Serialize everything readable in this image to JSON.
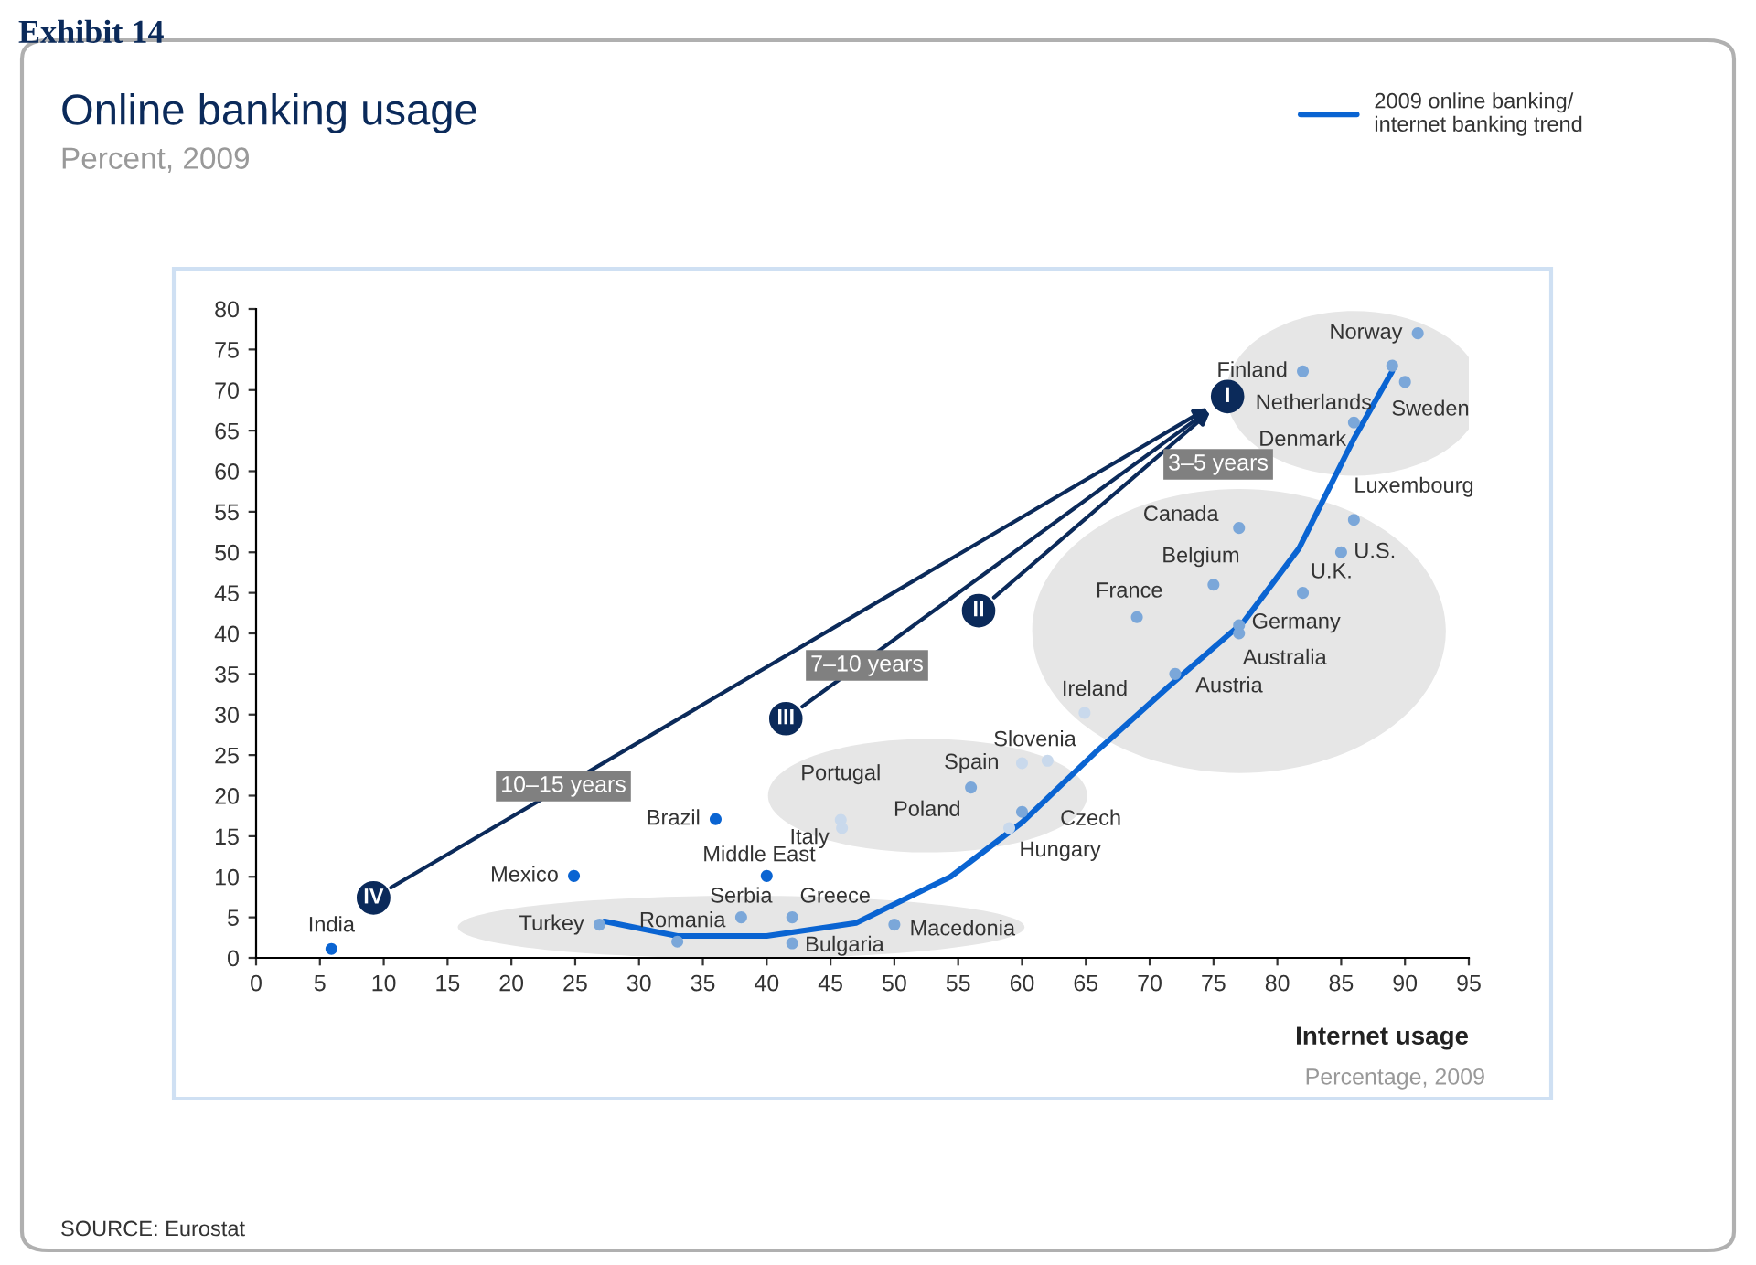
{
  "chart_data": {
    "type": "scatter",
    "title": "Online banking usage",
    "subtitle": "Percent, 2009",
    "xlabel": "Internet usage",
    "xlim": [
      0,
      95
    ],
    "xticks": [
      0,
      5,
      10,
      15,
      20,
      25,
      30,
      35,
      40,
      45,
      50,
      55,
      60,
      65,
      70,
      75,
      80,
      85,
      90,
      95
    ],
    "ylim": [
      0,
      80
    ],
    "yticks": [
      0,
      5,
      10,
      15,
      20,
      25,
      30,
      35,
      40,
      45,
      50,
      55,
      60,
      65,
      70,
      75,
      80
    ],
    "grid": false,
    "legend": "top right",
    "series": [
      {
        "marker": "circle",
        "x": [
          5.9,
          24.9,
          36,
          40,
          26.9,
          33,
          38,
          42,
          42,
          50,
          45.8,
          45.9,
          56,
          60,
          62,
          60,
          59,
          64.9,
          72,
          77,
          77,
          69,
          75,
          77,
          82,
          85,
          86,
          86,
          82,
          89,
          90,
          91
        ],
        "values": [
          1.1,
          10.1,
          17.1,
          10.1,
          4.1,
          2,
          5,
          5,
          1.8,
          4.1,
          17,
          16,
          21,
          24,
          24.3,
          18,
          16,
          30.2,
          35,
          41,
          40,
          42,
          46,
          53,
          45,
          50,
          54,
          66,
          72.3,
          73,
          71,
          77
        ],
        "colors": [
          "#0a64d2",
          "#0a64d2",
          "#0a64d2",
          "#0a64d2",
          "#7ba7d9",
          "#7ba7d9",
          "#7ba7d9",
          "#7ba7d9",
          "#7ba7d9",
          "#7ba7d9",
          "#c9d9ec",
          "#c9d9ec",
          "#7ba7d9",
          "#c9d9ec",
          "#c9d9ec",
          "#7ba7d9",
          "#c9d9ec",
          "#c9d9ec",
          "#7ba7d9",
          "#7ba7d9",
          "#7ba7d9",
          "#7ba7d9",
          "#7ba7d9",
          "#7ba7d9",
          "#7ba7d9",
          "#7ba7d9",
          "#7ba7d9",
          "#7ba7d9",
          "#7ba7d9",
          "#7ba7d9",
          "#7ba7d9",
          "#7ba7d9"
        ]
      },
      {
        "type": "line",
        "name": "2009 online banking/\ninternet banking trend",
        "color": "#0a64d2",
        "x": [
          27.3,
          33,
          40,
          47,
          54.4,
          60,
          66,
          71.6,
          77.4,
          81.7,
          86,
          89
        ],
        "values": [
          4.5,
          2.7,
          2.7,
          4.3,
          10,
          16.7,
          25.7,
          33.6,
          41.5,
          50.5,
          64,
          72.3
        ]
      }
    ],
    "annotations": [
      {
        "text": "I",
        "x": 76.1,
        "y": 69.2
      },
      {
        "text": "II",
        "x": 56.6,
        "y": 42.8
      },
      {
        "text": "III",
        "x": 41.5,
        "y": 29.5
      },
      {
        "text": "IV",
        "x": 9.2,
        "y": 7.4
      },
      "3–5 years",
      "7–10 years",
      "10–15 years",
      {
        "text": "India",
        "x": 5.9,
        "y": 1.1
      },
      {
        "text": "Mexico",
        "x": 24.9,
        "y": 10.1
      },
      {
        "text": "Brazil",
        "x": 36,
        "y": 17.1
      },
      {
        "text": "Middle East",
        "x": 40,
        "y": 10.1
      },
      {
        "text": "Turkey",
        "x": 26.9,
        "y": 4.1
      },
      {
        "text": "Romania",
        "x": 33,
        "y": 2
      },
      {
        "text": "Serbia",
        "x": 38,
        "y": 5
      },
      {
        "text": "Greece",
        "x": 42,
        "y": 5
      },
      {
        "text": "Bulgaria",
        "x": 42,
        "y": 1.8
      },
      {
        "text": "Macedonia",
        "x": 50,
        "y": 4.1
      },
      {
        "text": "Portugal",
        "x": 45.8,
        "y": 17
      },
      {
        "text": "Italy",
        "x": 45.9,
        "y": 16
      },
      {
        "text": "Poland",
        "x": 56,
        "y": 21
      },
      {
        "text": "Spain",
        "x": 60,
        "y": 24
      },
      {
        "text": "Slovenia",
        "x": 62,
        "y": 24.3
      },
      {
        "text": "Czech",
        "x": 60,
        "y": 18
      },
      {
        "text": "Hungary",
        "x": 59,
        "y": 16
      },
      {
        "text": "Ireland",
        "x": 64.9,
        "y": 30.2
      },
      {
        "text": "Austria",
        "x": 72,
        "y": 35
      },
      {
        "text": "Germany",
        "x": 77,
        "y": 41
      },
      {
        "text": "Australia",
        "x": 77,
        "y": 40
      },
      {
        "text": "France",
        "x": 69,
        "y": 42
      },
      {
        "text": "Belgium",
        "x": 75,
        "y": 46
      },
      {
        "text": "Canada",
        "x": 77,
        "y": 53
      },
      {
        "text": "U.K.",
        "x": 82,
        "y": 45
      },
      {
        "text": "U.S.",
        "x": 85,
        "y": 50
      },
      {
        "text": "Luxembourg",
        "x": 86,
        "y": 54
      },
      {
        "text": "Denmark",
        "x": 86,
        "y": 66
      },
      {
        "text": "Finland",
        "x": 82,
        "y": 72.3
      },
      {
        "text": "Netherlands",
        "x": 89,
        "y": 73
      },
      {
        "text": "Sweden",
        "x": 90,
        "y": 71
      },
      {
        "text": "Norway",
        "x": 91,
        "y": 77
      },
      "Exhibit 14",
      "Percentage, 2009",
      "SOURCE: Eurostat"
    ]
  }
}
